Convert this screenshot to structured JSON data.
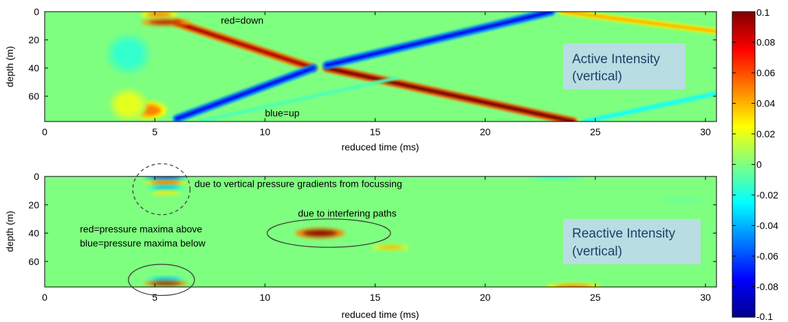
{
  "chart_data": [
    {
      "type": "heatmap",
      "title": "",
      "xlabel": "reduced time (ms)",
      "ylabel": "depth (m)",
      "xlim": [
        0,
        30.5
      ],
      "ylim": [
        78,
        0
      ],
      "xticks": [
        0,
        5,
        10,
        15,
        20,
        25,
        30
      ],
      "yticks": [
        0,
        20,
        40,
        60
      ],
      "grid": false,
      "panel_label": [
        "Active Intensity",
        "(vertical)"
      ],
      "background_value": 0,
      "features": [
        {
          "kind": "ray",
          "description": "down-going arrival",
          "from": [
            6,
            8
          ],
          "to": [
            12.2,
            40
          ],
          "value": 0.09,
          "width_m": 3.5
        },
        {
          "kind": "ray",
          "description": "down-going arrival",
          "from": [
            12.8,
            40
          ],
          "to": [
            24,
            78
          ],
          "value": 0.1,
          "width_m": 3.5
        },
        {
          "kind": "ray",
          "description": "up-going arrival",
          "from": [
            6,
            76
          ],
          "to": [
            12.2,
            40
          ],
          "value": -0.08,
          "width_m": 3.5
        },
        {
          "kind": "ray",
          "description": "up-going arrival",
          "from": [
            12.8,
            38
          ],
          "to": [
            23,
            0
          ],
          "value": -0.08,
          "width_m": 3.5
        },
        {
          "kind": "ray",
          "description": "surface reflection",
          "from": [
            23.5,
            0
          ],
          "to": [
            30.5,
            14
          ],
          "value": 0.04,
          "width_m": 2.5
        },
        {
          "kind": "ray",
          "description": "bottom reflection",
          "from": [
            24.5,
            78
          ],
          "to": [
            30.5,
            58
          ],
          "value": -0.025,
          "width_m": 2
        },
        {
          "kind": "ray",
          "description": "weak up-going",
          "from": [
            7,
            78
          ],
          "to": [
            16,
            47
          ],
          "value": -0.012,
          "width_m": 1.5
        },
        {
          "kind": "blob",
          "center": [
            5.2,
            2
          ],
          "radius": [
            0.6,
            1.8
          ],
          "value": 0.05
        },
        {
          "kind": "blob",
          "center": [
            5.5,
            7.5
          ],
          "radius": [
            0.8,
            1.8
          ],
          "value": 0.09
        },
        {
          "kind": "blob",
          "center": [
            4.7,
            70
          ],
          "radius": [
            0.6,
            4.5
          ],
          "value": 0.05
        },
        {
          "kind": "blob",
          "center": [
            3.8,
            30
          ],
          "radius": [
            0.7,
            10
          ],
          "value": -0.015
        },
        {
          "kind": "blob",
          "center": [
            3.8,
            66
          ],
          "radius": [
            0.6,
            8
          ],
          "value": 0.02
        }
      ],
      "annotations": [
        {
          "text": "red=down",
          "x": 8,
          "y": 6
        },
        {
          "text": "blue=up",
          "x": 10,
          "y": 72
        }
      ]
    },
    {
      "type": "heatmap",
      "title": "",
      "xlabel": "reduced time (ms)",
      "ylabel": "depth (m)",
      "xlim": [
        0,
        30.5
      ],
      "ylim": [
        78,
        0
      ],
      "xticks": [
        0,
        5,
        10,
        15,
        20,
        25,
        30
      ],
      "yticks": [
        0,
        20,
        40,
        60
      ],
      "grid": false,
      "panel_label": [
        "Reactive Intensity",
        "(vertical)"
      ],
      "background_value": 0,
      "features": [
        {
          "kind": "blob",
          "center": [
            5.5,
            1
          ],
          "radius": [
            0.7,
            1.3
          ],
          "value": -0.07
        },
        {
          "kind": "blob",
          "center": [
            5.5,
            4.5
          ],
          "radius": [
            0.7,
            1.3
          ],
          "value": 0.06
        },
        {
          "kind": "blob",
          "center": [
            5.5,
            8
          ],
          "radius": [
            0.6,
            1.2
          ],
          "value": -0.04
        },
        {
          "kind": "blob",
          "center": [
            5.5,
            11.5
          ],
          "radius": [
            0.5,
            1.1
          ],
          "value": 0.03
        },
        {
          "kind": "blob",
          "center": [
            12.5,
            40
          ],
          "radius": [
            0.8,
            2.5
          ],
          "value": 0.1
        },
        {
          "kind": "blob",
          "center": [
            15.7,
            50
          ],
          "radius": [
            0.6,
            1.3
          ],
          "value": 0.04
        },
        {
          "kind": "blob",
          "center": [
            5.5,
            72.5
          ],
          "radius": [
            0.6,
            1.1
          ],
          "value": -0.04
        },
        {
          "kind": "blob",
          "center": [
            5.5,
            75.5
          ],
          "radius": [
            0.7,
            1.3
          ],
          "value": 0.1
        },
        {
          "kind": "blob",
          "center": [
            23.2,
            0
          ],
          "radius": [
            0.9,
            1.3
          ],
          "value": -0.015
        },
        {
          "kind": "blob",
          "center": [
            24,
            78
          ],
          "radius": [
            0.9,
            1.8
          ],
          "value": 0.05
        },
        {
          "kind": "blob",
          "center": [
            29,
            17
          ],
          "radius": [
            0.8,
            0.8
          ],
          "value": -0.008
        }
      ],
      "annotations": [
        {
          "text": "due to vertical pressure gradients from focussing",
          "x": 6.8,
          "y": 5
        },
        {
          "text": "due to interfering paths",
          "x": 11.5,
          "y": 26
        },
        {
          "text": "red=pressure maxima above",
          "x": 1.6,
          "y": 37
        },
        {
          "text": "blue=pressure maxima below",
          "x": 1.6,
          "y": 47
        }
      ],
      "markers": [
        {
          "shape": "dashed-circle",
          "center": [
            5.3,
            9
          ],
          "radius": [
            1.3,
            18
          ]
        },
        {
          "shape": "ellipse",
          "center": [
            12.9,
            40
          ],
          "radius": [
            2.8,
            10
          ]
        },
        {
          "shape": "ellipse",
          "center": [
            5.3,
            73
          ],
          "radius": [
            1.5,
            11
          ]
        }
      ]
    }
  ],
  "colorbar": {
    "min": -0.1,
    "max": 0.1,
    "ticks": [
      0.1,
      0.08,
      0.06,
      0.04,
      0.02,
      0,
      -0.02,
      -0.04,
      -0.06,
      -0.08,
      -0.1
    ],
    "tick_labels": [
      "0.1",
      "0.08",
      "0.06",
      "0.04",
      "0.02",
      "0",
      "-0.02",
      "-0.04",
      "-0.06",
      "-0.08",
      "-0.1"
    ],
    "colormap": "jet"
  },
  "colors": {
    "panel_label_bg": "#b8dde2",
    "panel_label_text": "#1f3f66",
    "axis": "#000000"
  }
}
